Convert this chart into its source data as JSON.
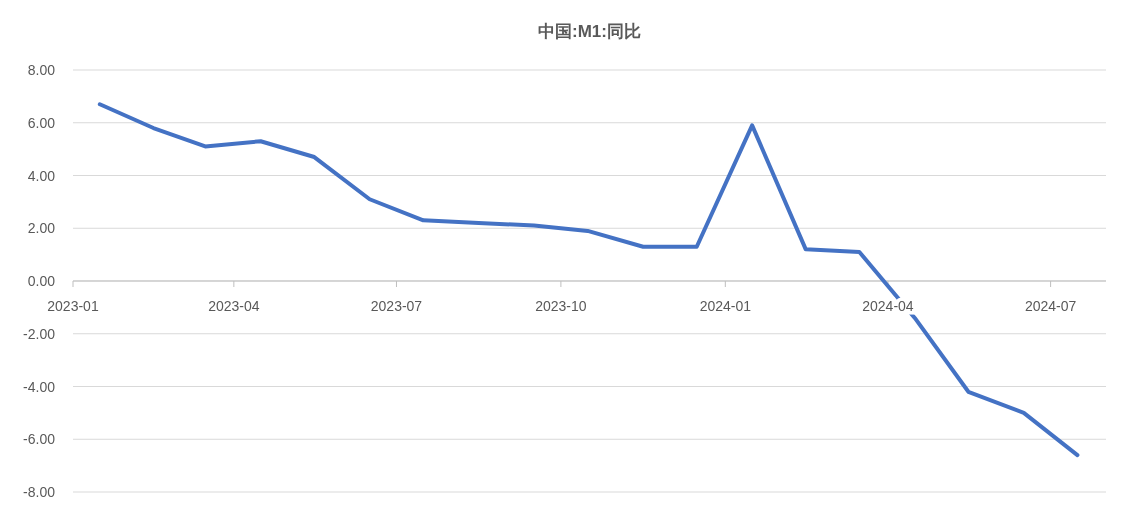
{
  "chart_data": {
    "type": "line",
    "title": "中国:M1:同比",
    "x": [
      "2023-01-16",
      "2023-02-15",
      "2023-03-16",
      "2023-04-16",
      "2023-05-16",
      "2023-06-16",
      "2023-07-16",
      "2023-08-16",
      "2023-09-16",
      "2023-10-16",
      "2023-11-16",
      "2023-12-16",
      "2024-01-16",
      "2024-02-15",
      "2024-03-16",
      "2024-04-16",
      "2024-05-16",
      "2024-06-16",
      "2024-07-16"
    ],
    "series": [
      {
        "color": "#4472c4",
        "values": [
          6.7,
          5.8,
          5.1,
          5.3,
          4.7,
          3.1,
          2.3,
          2.2,
          2.1,
          1.9,
          1.3,
          1.3,
          5.9,
          1.2,
          1.1,
          -1.4,
          -4.2,
          -5.0,
          -6.6
        ]
      }
    ],
    "xlim": [
      "2023-01",
      "2024-08"
    ],
    "xticks": [
      "2023-01",
      "2023-04",
      "2023-07",
      "2023-10",
      "2024-01",
      "2024-04",
      "2024-07"
    ],
    "ylim": [
      -8,
      8
    ],
    "yticks": [
      {
        "value": -8,
        "label": "-8.00"
      },
      {
        "value": -6,
        "label": "-6.00"
      },
      {
        "value": -4,
        "label": "-4.00"
      },
      {
        "value": -2,
        "label": "-2.00"
      },
      {
        "value": 0,
        "label": "0.00"
      },
      {
        "value": 2,
        "label": "2.00"
      },
      {
        "value": 4,
        "label": "4.00"
      },
      {
        "value": 6,
        "label": "6.00"
      },
      {
        "value": 8,
        "label": "8.00"
      }
    ],
    "grid": "y",
    "marker": "none",
    "line_style": "solid"
  }
}
